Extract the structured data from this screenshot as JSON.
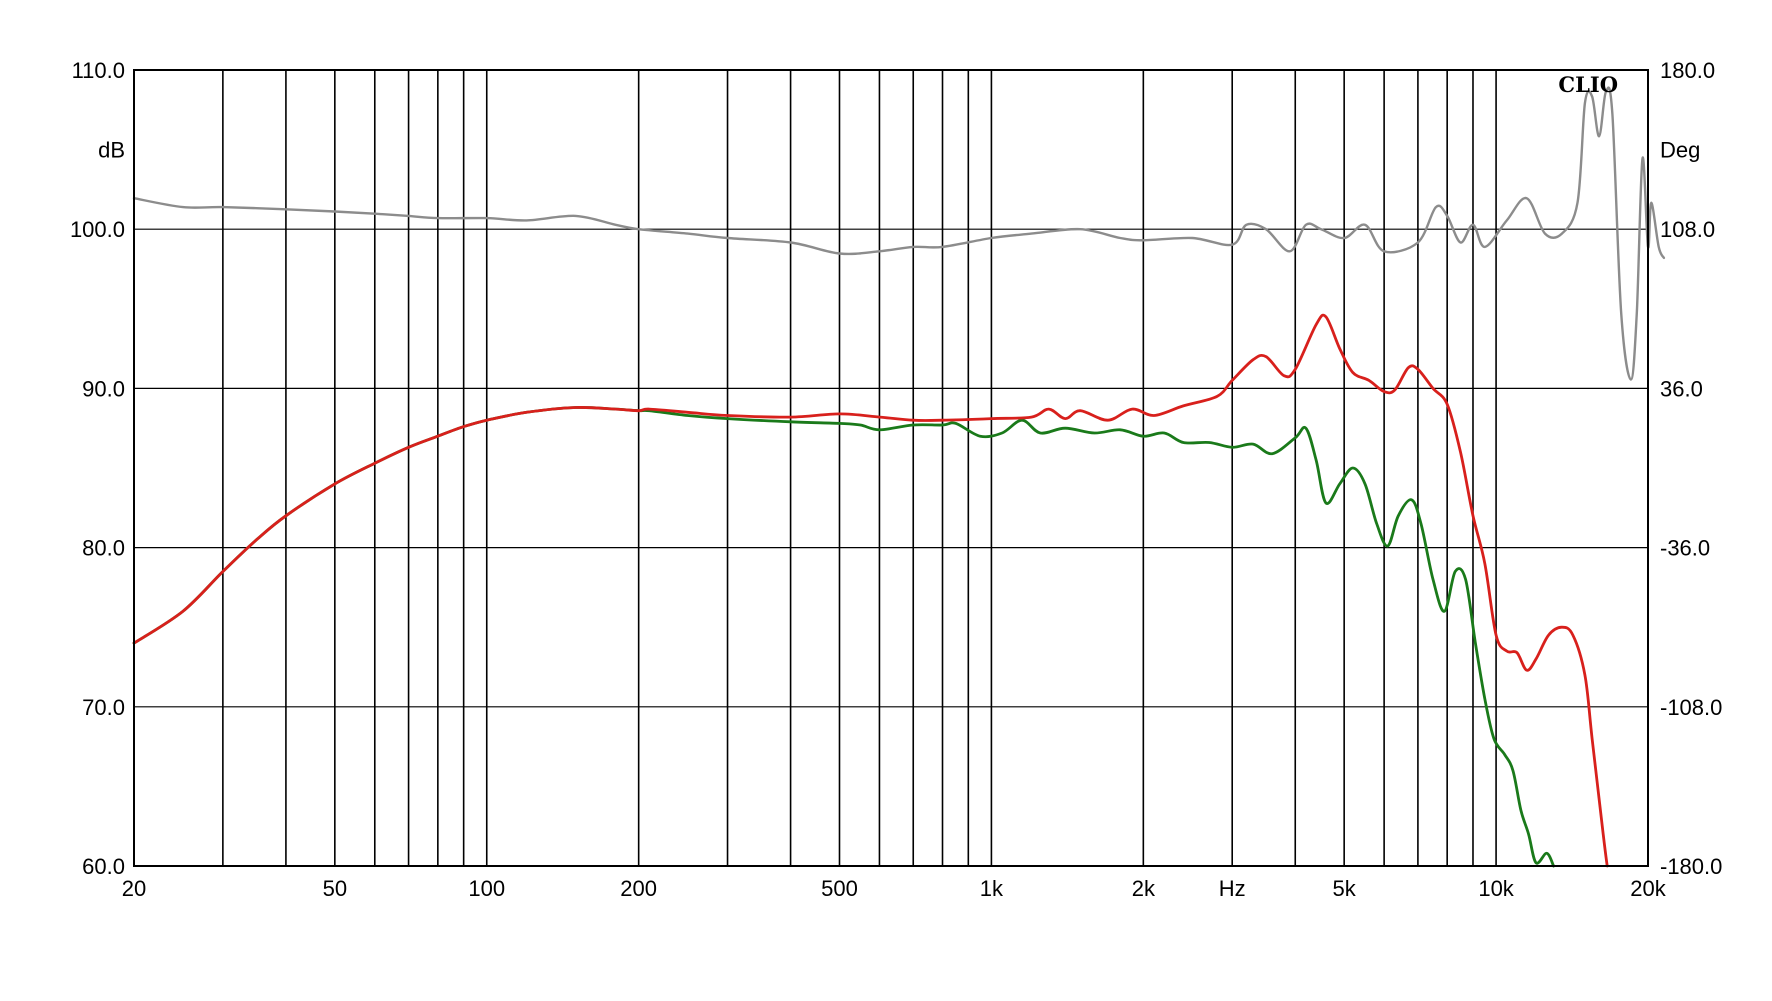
{
  "chart_data": {
    "type": "line",
    "title": "",
    "logo_text": "CLIO",
    "xlabel": "Hz",
    "ylabel": "dB",
    "y2label": "Deg",
    "x_scale": "log",
    "xlim": [
      20,
      20000
    ],
    "ylim": [
      60,
      110
    ],
    "y2lim": [
      -180,
      180
    ],
    "x_tick_labels": [
      {
        "value": 20,
        "label": "20"
      },
      {
        "value": 50,
        "label": "50"
      },
      {
        "value": 100,
        "label": "100"
      },
      {
        "value": 200,
        "label": "200"
      },
      {
        "value": 500,
        "label": "500"
      },
      {
        "value": 1000,
        "label": "1k"
      },
      {
        "value": 2000,
        "label": "2k"
      },
      {
        "value": 5000,
        "label": "5k"
      },
      {
        "value": 10000,
        "label": "10k"
      },
      {
        "value": 20000,
        "label": "20k"
      }
    ],
    "y_tick_labels": [
      "60.0",
      "70.0",
      "80.0",
      "90.0",
      "100.0",
      "110.0"
    ],
    "y2_tick_labels": [
      "-180.0",
      "-108.0",
      "-36.0",
      "36.0",
      "108.0",
      "180.0"
    ],
    "y_ticks": [
      60,
      70,
      80,
      90,
      100,
      110
    ],
    "y2_ticks": [
      -180,
      -108,
      -36,
      36,
      108,
      180
    ],
    "grid": true,
    "legend": "none",
    "colors": {
      "red": "#d8201c",
      "green": "#1a7a1a",
      "gray": "#8c8c8c"
    },
    "series": [
      {
        "color": "red",
        "axis": "left",
        "points": [
          [
            20,
            74.0
          ],
          [
            25,
            76.0
          ],
          [
            30,
            78.5
          ],
          [
            35,
            80.5
          ],
          [
            40,
            82.0
          ],
          [
            50,
            84.0
          ],
          [
            60,
            85.3
          ],
          [
            70,
            86.3
          ],
          [
            80,
            87.0
          ],
          [
            90,
            87.6
          ],
          [
            100,
            88.0
          ],
          [
            120,
            88.5
          ],
          [
            150,
            88.8
          ],
          [
            180,
            88.7
          ],
          [
            200,
            88.6
          ],
          [
            210,
            88.7
          ],
          [
            250,
            88.5
          ],
          [
            300,
            88.3
          ],
          [
            400,
            88.2
          ],
          [
            500,
            88.4
          ],
          [
            600,
            88.2
          ],
          [
            700,
            88.0
          ],
          [
            800,
            88.0
          ],
          [
            1000,
            88.1
          ],
          [
            1200,
            88.2
          ],
          [
            1300,
            88.7
          ],
          [
            1400,
            88.1
          ],
          [
            1500,
            88.6
          ],
          [
            1700,
            88.0
          ],
          [
            1900,
            88.7
          ],
          [
            2100,
            88.3
          ],
          [
            2400,
            88.9
          ],
          [
            2800,
            89.5
          ],
          [
            3000,
            90.5
          ],
          [
            3300,
            91.8
          ],
          [
            3500,
            92.0
          ],
          [
            3800,
            90.8
          ],
          [
            4000,
            91.2
          ],
          [
            4400,
            94.0
          ],
          [
            4600,
            94.5
          ],
          [
            4900,
            92.5
          ],
          [
            5200,
            91.0
          ],
          [
            5600,
            90.5
          ],
          [
            6000,
            89.8
          ],
          [
            6300,
            89.9
          ],
          [
            6700,
            91.3
          ],
          [
            7000,
            91.2
          ],
          [
            7500,
            90.0
          ],
          [
            8000,
            89.0
          ],
          [
            8500,
            86.0
          ],
          [
            9000,
            82.0
          ],
          [
            9500,
            79.0
          ],
          [
            10000,
            74.5
          ],
          [
            10500,
            73.5
          ],
          [
            11000,
            73.4
          ],
          [
            11500,
            72.3
          ],
          [
            12000,
            73.0
          ],
          [
            12700,
            74.5
          ],
          [
            13500,
            75.0
          ],
          [
            14200,
            74.5
          ],
          [
            15000,
            72.0
          ],
          [
            15500,
            68.0
          ],
          [
            16300,
            62.0
          ],
          [
            16600,
            60.0
          ]
        ]
      },
      {
        "color": "green",
        "axis": "left",
        "points": [
          [
            20,
            74.0
          ],
          [
            25,
            76.0
          ],
          [
            30,
            78.5
          ],
          [
            35,
            80.5
          ],
          [
            40,
            82.0
          ],
          [
            50,
            84.0
          ],
          [
            60,
            85.3
          ],
          [
            70,
            86.3
          ],
          [
            80,
            87.0
          ],
          [
            90,
            87.6
          ],
          [
            100,
            88.0
          ],
          [
            120,
            88.5
          ],
          [
            150,
            88.8
          ],
          [
            180,
            88.7
          ],
          [
            200,
            88.6
          ],
          [
            210,
            88.6
          ],
          [
            250,
            88.3
          ],
          [
            300,
            88.1
          ],
          [
            400,
            87.9
          ],
          [
            500,
            87.8
          ],
          [
            550,
            87.7
          ],
          [
            600,
            87.4
          ],
          [
            700,
            87.7
          ],
          [
            800,
            87.7
          ],
          [
            850,
            87.8
          ],
          [
            950,
            87.0
          ],
          [
            1050,
            87.2
          ],
          [
            1150,
            88.0
          ],
          [
            1250,
            87.2
          ],
          [
            1400,
            87.5
          ],
          [
            1600,
            87.2
          ],
          [
            1800,
            87.4
          ],
          [
            2000,
            87.0
          ],
          [
            2200,
            87.2
          ],
          [
            2400,
            86.6
          ],
          [
            2700,
            86.6
          ],
          [
            3000,
            86.3
          ],
          [
            3300,
            86.5
          ],
          [
            3600,
            85.9
          ],
          [
            4000,
            86.9
          ],
          [
            4200,
            87.5
          ],
          [
            4400,
            85.5
          ],
          [
            4600,
            82.8
          ],
          [
            4900,
            84.0
          ],
          [
            5200,
            85.0
          ],
          [
            5500,
            84.0
          ],
          [
            5800,
            81.5
          ],
          [
            6100,
            80.1
          ],
          [
            6400,
            82.0
          ],
          [
            6800,
            83.0
          ],
          [
            7100,
            81.5
          ],
          [
            7500,
            78.0
          ],
          [
            7900,
            76.0
          ],
          [
            8300,
            78.5
          ],
          [
            8700,
            78.0
          ],
          [
            9100,
            74.0
          ],
          [
            9500,
            70.5
          ],
          [
            9900,
            68.0
          ],
          [
            10400,
            67.0
          ],
          [
            10800,
            66.0
          ],
          [
            11200,
            63.5
          ],
          [
            11600,
            62.0
          ],
          [
            12000,
            60.2
          ],
          [
            12600,
            60.8
          ],
          [
            13000,
            60.0
          ]
        ]
      },
      {
        "color": "gray",
        "axis": "right",
        "points": [
          [
            20,
            122.0
          ],
          [
            25,
            118.0
          ],
          [
            30,
            118.0
          ],
          [
            40,
            117.0
          ],
          [
            50,
            116.0
          ],
          [
            60,
            115.0
          ],
          [
            70,
            114.0
          ],
          [
            80,
            113.0
          ],
          [
            100,
            113.0
          ],
          [
            120,
            112.0
          ],
          [
            150,
            114.0
          ],
          [
            180,
            110.0
          ],
          [
            200,
            108.0
          ],
          [
            250,
            106.0
          ],
          [
            300,
            104.0
          ],
          [
            400,
            102.0
          ],
          [
            500,
            97.0
          ],
          [
            600,
            98.0
          ],
          [
            700,
            100.0
          ],
          [
            800,
            100.0
          ],
          [
            1000,
            104.0
          ],
          [
            1200,
            106.0
          ],
          [
            1500,
            108.0
          ],
          [
            1800,
            104.0
          ],
          [
            2000,
            103.0
          ],
          [
            2500,
            104.0
          ],
          [
            3000,
            101.0
          ],
          [
            3200,
            110.0
          ],
          [
            3500,
            108.0
          ],
          [
            3900,
            98.0
          ],
          [
            4200,
            110.0
          ],
          [
            4500,
            108.0
          ],
          [
            5000,
            104.0
          ],
          [
            5500,
            110.0
          ],
          [
            6000,
            98.0
          ],
          [
            7000,
            102.0
          ],
          [
            7600,
            118.0
          ],
          [
            8000,
            114.0
          ],
          [
            8500,
            102.0
          ],
          [
            9000,
            110.0
          ],
          [
            9500,
            100.0
          ],
          [
            10500,
            112.0
          ],
          [
            11500,
            122.0
          ],
          [
            12500,
            106.0
          ],
          [
            13500,
            106.0
          ],
          [
            14500,
            120.0
          ],
          [
            15000,
            165.0
          ],
          [
            15500,
            168.0
          ],
          [
            16000,
            150.0
          ],
          [
            16500,
            170.0
          ],
          [
            17000,
            160.0
          ],
          [
            17700,
            70.0
          ],
          [
            18500,
            40.0
          ],
          [
            19000,
            70.0
          ],
          [
            19500,
            140.0
          ],
          [
            20000,
            100.0
          ],
          [
            20300,
            120.0
          ],
          [
            21000,
            100.0
          ],
          [
            21500,
            95.0
          ]
        ]
      }
    ]
  }
}
